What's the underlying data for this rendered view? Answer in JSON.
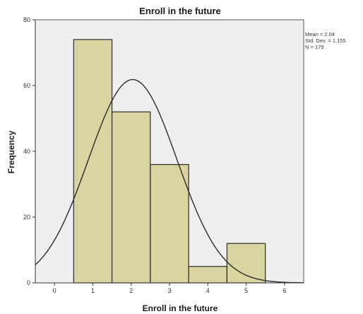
{
  "chart_data": {
    "type": "bar",
    "title": "Enroll in the future",
    "xlabel": "Enroll in the future",
    "ylabel": "Frequency",
    "x_ticks": [
      0,
      1,
      2,
      3,
      4,
      5,
      6
    ],
    "y_ticks": [
      0,
      20,
      40,
      60,
      80
    ],
    "xlim": [
      -0.5,
      6.5
    ],
    "ylim": [
      0,
      80
    ],
    "bins": [
      {
        "center": 1,
        "value": 74
      },
      {
        "center": 2,
        "value": 52
      },
      {
        "center": 3,
        "value": 36
      },
      {
        "center": 4,
        "value": 5
      },
      {
        "center": 5,
        "value": 12
      }
    ],
    "normal_curve": {
      "mean": 2.04,
      "sd": 1.155,
      "n": 179,
      "bin_width": 1
    },
    "stats": [
      "Mean = 2.04",
      "Std. Dev. = 1.155",
      "N = 179"
    ],
    "grid": false,
    "legend": "right"
  },
  "colors": {
    "plot_background": "#efefef",
    "bar_fill": "#d9d4a0",
    "bar_stroke": "#2b2b2b",
    "curve": "#2b2b2b",
    "axis": "#333333"
  }
}
